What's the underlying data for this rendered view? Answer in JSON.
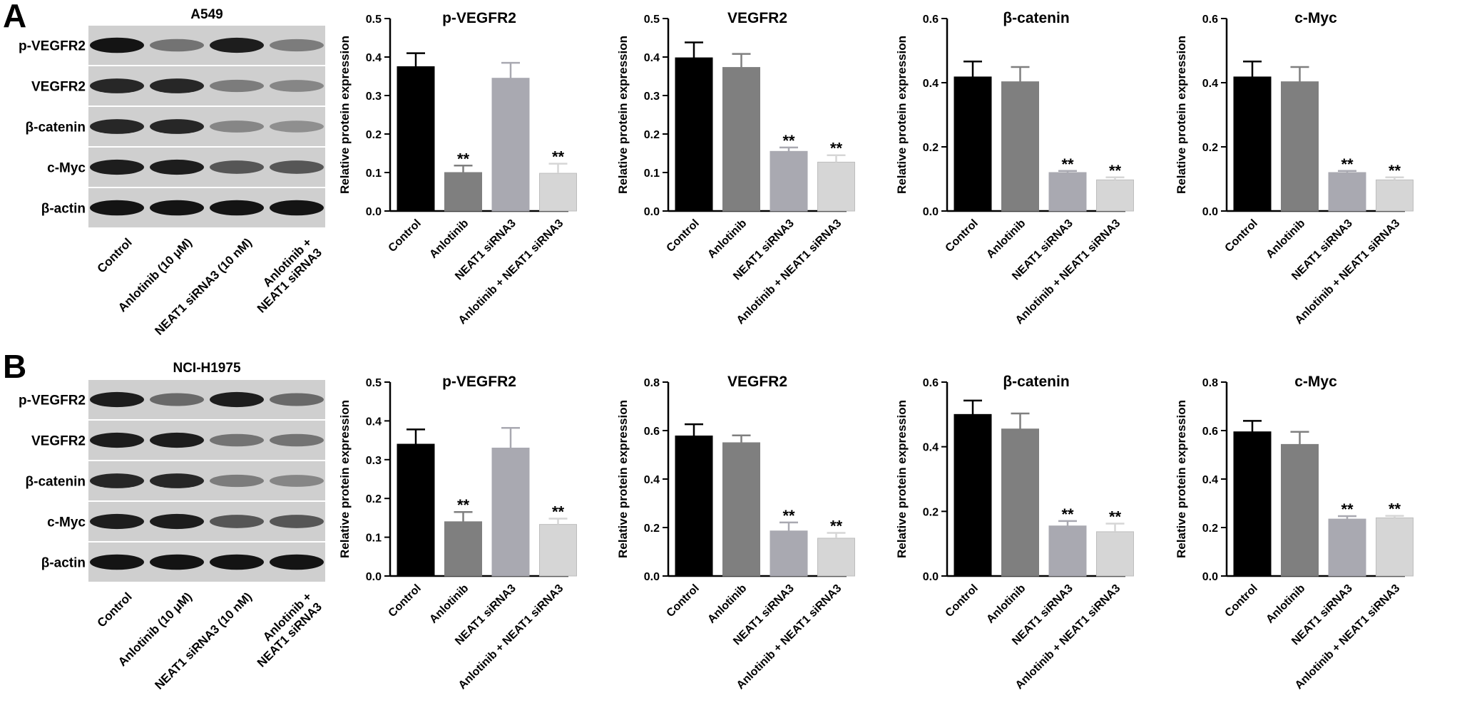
{
  "panels": [
    {
      "letter": "A",
      "blot": {
        "title": "A549",
        "bands": [
          "p-VEGFR2",
          "VEGFR2",
          "β-catenin",
          "c-Myc",
          "β-actin"
        ],
        "lanes": [
          "Control",
          "Anlotinib (10 μM)",
          "NEAT1 siRNA3 (10 nM)",
          "Anlotinib +\nNEAT1 siRNA3"
        ]
      }
    },
    {
      "letter": "B",
      "blot": {
        "title": "NCI-H1975",
        "bands": [
          "p-VEGFR2",
          "VEGFR2",
          "β-catenin",
          "c-Myc",
          "β-actin"
        ],
        "lanes": [
          "Control",
          "Anlotinib (10 μM)",
          "NEAT1 siRNA3 (10 nM)",
          "Anlotinib +\nNEAT1 siRNA3"
        ]
      }
    }
  ],
  "colors": {
    "bars": [
      "#000000",
      "#7f7f7f",
      "#a9a9b1",
      "#d6d6d6"
    ]
  },
  "chart_data": [
    {
      "type": "bar",
      "panel": "A",
      "title": "p-VEGFR2",
      "ylabel": "Relative protein expression",
      "categories": [
        "Control",
        "Anlotinib",
        "NEAT1 siRNA3",
        "Anlotinib + NEAT1 siRNA3"
      ],
      "values": [
        0.375,
        0.1,
        0.345,
        0.098
      ],
      "errors": [
        0.035,
        0.018,
        0.04,
        0.025
      ],
      "significance": [
        "",
        "**",
        "",
        "**"
      ],
      "ylim": [
        0,
        0.5
      ],
      "yticks": [
        0.0,
        0.1,
        0.2,
        0.3,
        0.4,
        0.5
      ]
    },
    {
      "type": "bar",
      "panel": "A",
      "title": "VEGFR2",
      "ylabel": "Relative protein expression",
      "categories": [
        "Control",
        "Anlotinib",
        "NEAT1 siRNA3",
        "Anlotinib + NEAT1 siRNA3"
      ],
      "values": [
        0.398,
        0.373,
        0.155,
        0.127
      ],
      "errors": [
        0.04,
        0.035,
        0.01,
        0.018
      ],
      "significance": [
        "",
        "",
        "**",
        "**"
      ],
      "ylim": [
        0,
        0.5
      ],
      "yticks": [
        0.0,
        0.1,
        0.2,
        0.3,
        0.4,
        0.5
      ]
    },
    {
      "type": "bar",
      "panel": "A",
      "title": "β-catenin",
      "ylabel": "Relative protein expression",
      "categories": [
        "Control",
        "Anlotinib",
        "NEAT1 siRNA3",
        "Anlotinib + NEAT1 siRNA3"
      ],
      "values": [
        0.418,
        0.403,
        0.12,
        0.097
      ],
      "errors": [
        0.048,
        0.046,
        0.005,
        0.008
      ],
      "significance": [
        "",
        "",
        "**",
        "**"
      ],
      "ylim": [
        0,
        0.6
      ],
      "yticks": [
        0.0,
        0.2,
        0.4,
        0.6
      ]
    },
    {
      "type": "bar",
      "panel": "A",
      "title": "c-Myc",
      "ylabel": "Relative protein expression",
      "categories": [
        "Control",
        "Anlotinib",
        "NEAT1 siRNA3",
        "Anlotinib + NEAT1 siRNA3"
      ],
      "values": [
        0.418,
        0.403,
        0.12,
        0.097
      ],
      "errors": [
        0.048,
        0.046,
        0.005,
        0.008
      ],
      "significance": [
        "",
        "",
        "**",
        "**"
      ],
      "ylim": [
        0,
        0.6
      ],
      "yticks": [
        0.0,
        0.2,
        0.4,
        0.6
      ]
    },
    {
      "type": "bar",
      "panel": "B",
      "title": "p-VEGFR2",
      "ylabel": "Relative protein expression",
      "categories": [
        "Control",
        "Anlotinib",
        "NEAT1 siRNA3",
        "Anlotinib + NEAT1 siRNA3"
      ],
      "values": [
        0.34,
        0.14,
        0.33,
        0.133
      ],
      "errors": [
        0.038,
        0.025,
        0.052,
        0.015
      ],
      "significance": [
        "",
        "**",
        "",
        "**"
      ],
      "ylim": [
        0,
        0.5
      ],
      "yticks": [
        0.0,
        0.1,
        0.2,
        0.3,
        0.4,
        0.5
      ]
    },
    {
      "type": "bar",
      "panel": "B",
      "title": "VEGFR2",
      "ylabel": "Relative protein expression",
      "categories": [
        "Control",
        "Anlotinib",
        "NEAT1 siRNA3",
        "Anlotinib + NEAT1 siRNA3"
      ],
      "values": [
        0.578,
        0.55,
        0.186,
        0.156
      ],
      "errors": [
        0.048,
        0.03,
        0.035,
        0.022
      ],
      "significance": [
        "",
        "",
        "**",
        "**"
      ],
      "ylim": [
        0,
        0.8
      ],
      "yticks": [
        0.0,
        0.2,
        0.4,
        0.6,
        0.8
      ]
    },
    {
      "type": "bar",
      "panel": "B",
      "title": "β-catenin",
      "ylabel": "Relative protein expression",
      "categories": [
        "Control",
        "Anlotinib",
        "NEAT1 siRNA3",
        "Anlotinib + NEAT1 siRNA3"
      ],
      "values": [
        0.5,
        0.455,
        0.155,
        0.137
      ],
      "errors": [
        0.043,
        0.048,
        0.015,
        0.025
      ],
      "significance": [
        "",
        "",
        "**",
        "**"
      ],
      "ylim": [
        0,
        0.6
      ],
      "yticks": [
        0.0,
        0.2,
        0.4,
        0.6
      ]
    },
    {
      "type": "bar",
      "panel": "B",
      "title": "c-Myc",
      "ylabel": "Relative protein expression",
      "categories": [
        "Control",
        "Anlotinib",
        "NEAT1 siRNA3",
        "Anlotinib + NEAT1 siRNA3"
      ],
      "values": [
        0.595,
        0.543,
        0.235,
        0.24
      ],
      "errors": [
        0.045,
        0.052,
        0.012,
        0.008
      ],
      "significance": [
        "",
        "",
        "**",
        "**"
      ],
      "ylim": [
        0,
        0.8
      ],
      "yticks": [
        0.0,
        0.2,
        0.4,
        0.6,
        0.8
      ]
    }
  ]
}
